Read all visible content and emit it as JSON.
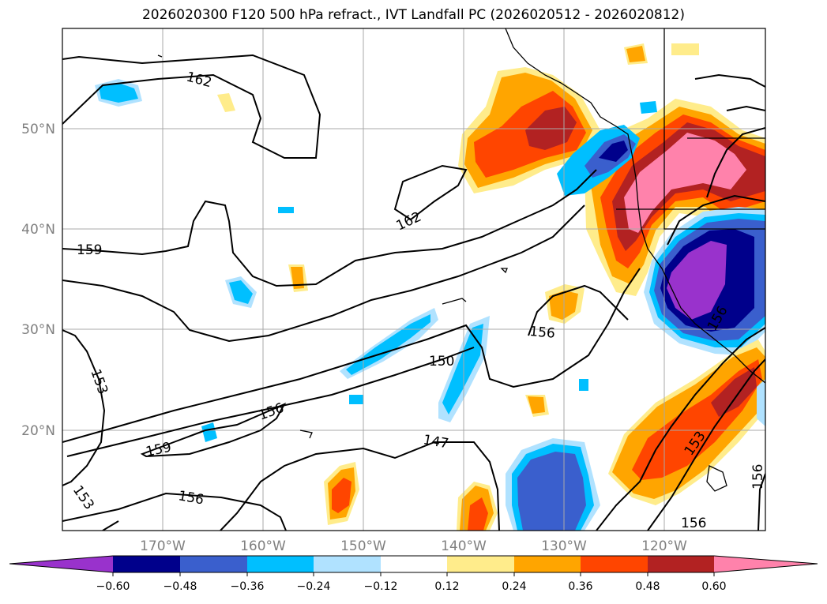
{
  "title": "2026020300 F120 500 hPa refract., IVT Landfall PC (2026020512 - 2026020812)",
  "lon_labels": [
    "170°W",
    "160°W",
    "150°W",
    "140°W",
    "130°W",
    "120°W"
  ],
  "lat_labels": [
    "50°N",
    "40°N",
    "30°N",
    "20°N"
  ],
  "contour_labels": [
    "162",
    "162",
    "159",
    "159",
    "156",
    "156",
    "156",
    "156",
    "153",
    "153",
    "150",
    "147",
    "153",
    "156",
    "156"
  ],
  "colorbar": {
    "ticks": [
      "−0.60",
      "−0.48",
      "−0.36",
      "−0.24",
      "−0.12",
      "0.12",
      "0.24",
      "0.36",
      "0.48",
      "0.60"
    ],
    "colors": [
      "#9932cc",
      "#00008b",
      "#3a5fcd",
      "#00bfff",
      "#b0e2ff",
      "#ffffff",
      "#ffec8b",
      "#ffa500",
      "#ff4500",
      "#b22222",
      "#ff82ab"
    ]
  }
}
